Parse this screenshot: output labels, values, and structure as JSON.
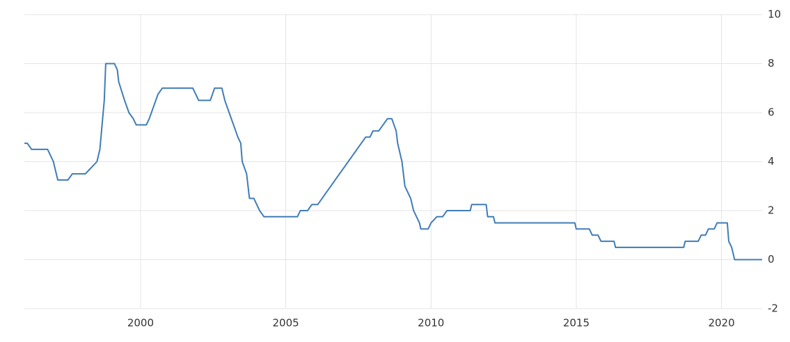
{
  "chart_data": {
    "type": "line",
    "x": [
      1996.0,
      1996.1,
      1996.25,
      1996.8,
      1997.0,
      1997.15,
      1997.5,
      1997.65,
      1998.1,
      1998.3,
      1998.5,
      1998.6,
      1998.75,
      1998.8,
      1999.1,
      1999.2,
      1999.25,
      1999.45,
      1999.6,
      1999.75,
      1999.85,
      2000.2,
      2000.3,
      2000.45,
      2000.6,
      2000.75,
      2001.8,
      2001.9,
      2002.0,
      2002.4,
      2002.55,
      2002.8,
      2002.9,
      2003.05,
      2003.2,
      2003.35,
      2003.45,
      2003.5,
      2003.65,
      2003.75,
      2003.9,
      2004.0,
      2004.1,
      2004.25,
      2005.4,
      2005.5,
      2005.75,
      2005.9,
      2006.1,
      2006.25,
      2006.4,
      2006.55,
      2006.7,
      2006.85,
      2007.0,
      2007.15,
      2007.3,
      2007.45,
      2007.6,
      2007.75,
      2007.9,
      2008.0,
      2008.2,
      2008.35,
      2008.5,
      2008.65,
      2008.8,
      2008.85,
      2009.0,
      2009.1,
      2009.3,
      2009.4,
      2009.6,
      2009.65,
      2009.9,
      2010.0,
      2010.2,
      2010.4,
      2010.55,
      2011.35,
      2011.4,
      2011.9,
      2011.95,
      2012.15,
      2012.2,
      2014.95,
      2015.0,
      2015.45,
      2015.55,
      2015.75,
      2015.85,
      2016.3,
      2016.35,
      2018.7,
      2018.75,
      2019.2,
      2019.3,
      2019.45,
      2019.55,
      2019.75,
      2019.85,
      2020.2,
      2020.25,
      2020.35,
      2020.45,
      2021.4
    ],
    "values": [
      4.75,
      4.75,
      4.5,
      4.5,
      4.0,
      3.25,
      3.25,
      3.5,
      3.5,
      3.75,
      4.0,
      4.5,
      6.5,
      8.0,
      8.0,
      7.75,
      7.25,
      6.5,
      6.0,
      5.75,
      5.5,
      5.5,
      5.75,
      6.25,
      6.75,
      7.0,
      7.0,
      6.75,
      6.5,
      6.5,
      7.0,
      7.0,
      6.5,
      6.0,
      5.5,
      5.0,
      4.75,
      4.0,
      3.5,
      2.5,
      2.5,
      2.25,
      2.0,
      1.75,
      1.75,
      2.0,
      2.0,
      2.25,
      2.25,
      2.5,
      2.75,
      3.0,
      3.25,
      3.5,
      3.75,
      4.0,
      4.25,
      4.5,
      4.75,
      5.0,
      5.0,
      5.25,
      5.25,
      5.5,
      5.75,
      5.75,
      5.25,
      4.75,
      4.0,
      3.0,
      2.5,
      2.0,
      1.5,
      1.25,
      1.25,
      1.5,
      1.75,
      1.75,
      2.0,
      2.0,
      2.25,
      2.25,
      1.75,
      1.75,
      1.5,
      1.5,
      1.25,
      1.25,
      1.0,
      1.0,
      0.75,
      0.75,
      0.5,
      0.5,
      0.75,
      0.75,
      1.0,
      1.0,
      1.25,
      1.25,
      1.5,
      1.5,
      0.75,
      0.5,
      0.0,
      0.0
    ],
    "color": "#3f7cb6",
    "xlim": [
      1996.0,
      2021.4
    ],
    "xticks": [
      2000,
      2005,
      2010,
      2015,
      2020
    ],
    "ylim": [
      -2,
      10
    ],
    "yticks": [
      -2,
      0,
      2,
      4,
      6,
      8,
      10
    ],
    "grid": true
  }
}
